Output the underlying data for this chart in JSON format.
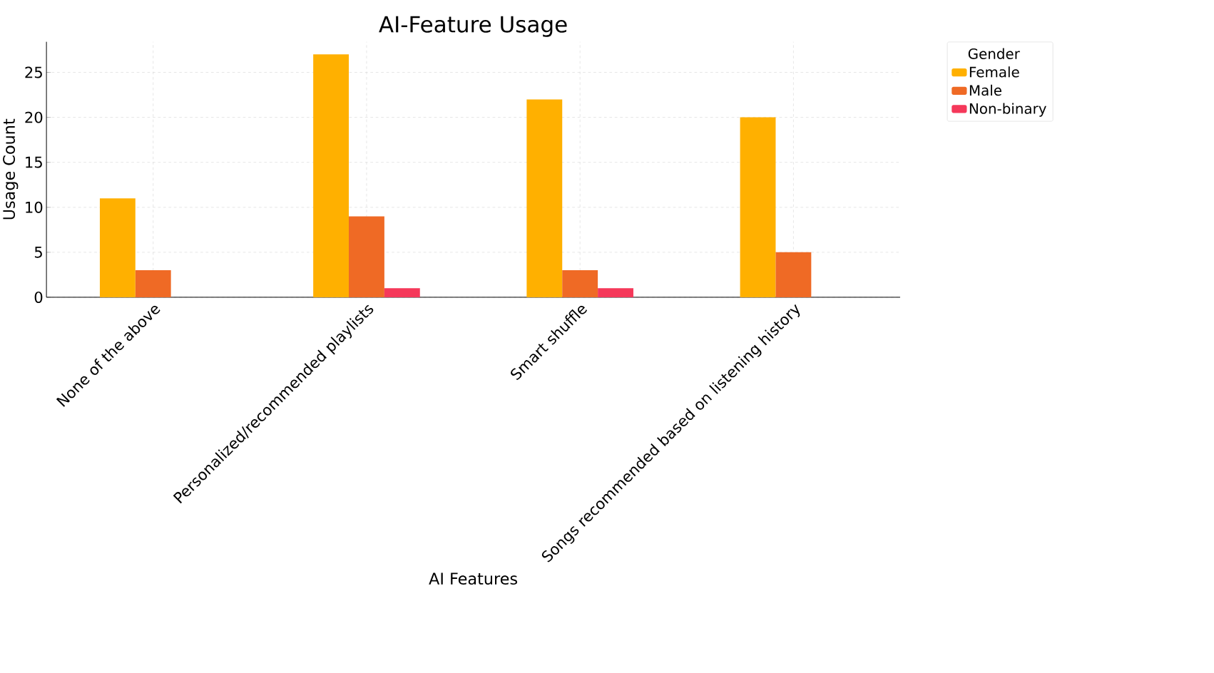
{
  "chart_data": {
    "type": "bar",
    "title": "AI-Feature Usage",
    "xlabel": "AI Features",
    "ylabel": "Usage Count",
    "legend_title": "Gender",
    "categories": [
      "None of the above",
      "Personalized/recommended playlists",
      "Smart shuffle",
      "Songs recommended based on listening history"
    ],
    "series": [
      {
        "name": "Female",
        "color": "#ffb000",
        "values": [
          11,
          27,
          22,
          20
        ]
      },
      {
        "name": "Male",
        "color": "#ef6a25",
        "values": [
          3,
          9,
          3,
          5
        ]
      },
      {
        "name": "Non-binary",
        "color": "#f5385a",
        "values": [
          0,
          1,
          1,
          0
        ]
      }
    ],
    "ylim": [
      0,
      28.4
    ],
    "yticks": [
      0,
      5,
      10,
      15,
      20,
      25
    ],
    "grid": true,
    "legend": "top right"
  }
}
